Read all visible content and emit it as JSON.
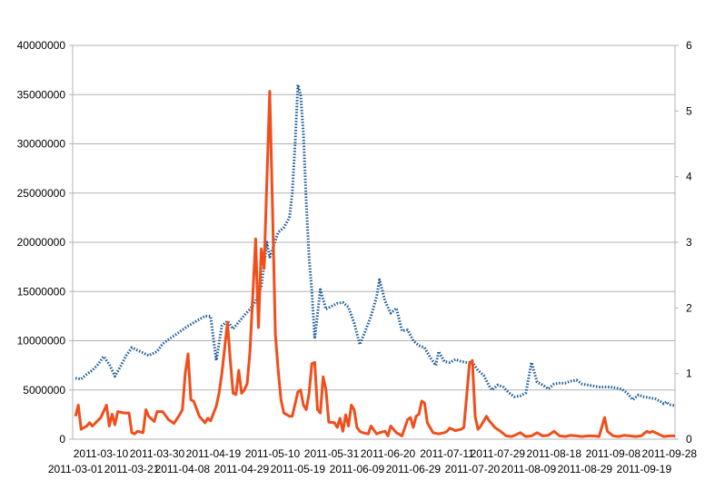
{
  "chart_data": {
    "type": "line",
    "title": "",
    "xlabel": "",
    "ylabel": "",
    "y_left": {
      "ylim": [
        0,
        40000000
      ],
      "ticks": [
        "0",
        "5000000",
        "10000000",
        "15000000",
        "20000000",
        "25000000",
        "30000000",
        "35000000",
        "40000000"
      ]
    },
    "y_right": {
      "ylim": [
        0,
        6
      ],
      "ticks": [
        "0",
        "1",
        "2",
        "3",
        "4",
        "5",
        "6"
      ]
    },
    "x_range": [
      "2011-02-28",
      "2011-09-30"
    ],
    "x_labels_row1": [
      "2011-03-10",
      "2011-03-30",
      "2011-04-19",
      "2011-05-10",
      "2011-05-31",
      "2011-06-20",
      "2011-07-11",
      "2011-07-29",
      "2011-08-18",
      "2011-09-08",
      "2011-09-28"
    ],
    "x_labels_row2": [
      "2011-03-01",
      "2011-03-21",
      "2011-04-08",
      "2011-04-29",
      "2011-05-19",
      "2011-06-09",
      "2011-06-29",
      "2011-07-20",
      "2011-08-09",
      "2011-08-29",
      "2011-09-19"
    ],
    "grid": true,
    "legend": "none",
    "series": [
      {
        "axis": "left",
        "color": "#1f5c99",
        "style": "dotted",
        "points": [
          [
            "2011-03-01",
            6200000
          ],
          [
            "2011-03-03",
            6100000
          ],
          [
            "2011-03-05",
            6600000
          ],
          [
            "2011-03-07",
            7000000
          ],
          [
            "2011-03-09",
            7600000
          ],
          [
            "2011-03-11",
            8400000
          ],
          [
            "2011-03-13",
            7600000
          ],
          [
            "2011-03-15",
            6400000
          ],
          [
            "2011-03-17",
            7400000
          ],
          [
            "2011-03-19",
            8500000
          ],
          [
            "2011-03-21",
            9300000
          ],
          [
            "2011-03-24",
            8900000
          ],
          [
            "2011-03-27",
            8500000
          ],
          [
            "2011-03-30",
            8900000
          ],
          [
            "2011-04-01",
            9700000
          ],
          [
            "2011-04-04",
            10300000
          ],
          [
            "2011-04-07",
            10900000
          ],
          [
            "2011-04-10",
            11500000
          ],
          [
            "2011-04-13",
            12000000
          ],
          [
            "2011-04-16",
            12500000
          ],
          [
            "2011-04-18",
            12500000
          ],
          [
            "2011-04-20",
            8000000
          ],
          [
            "2011-04-22",
            11500000
          ],
          [
            "2011-04-24",
            12000000
          ],
          [
            "2011-04-26",
            11200000
          ],
          [
            "2011-04-28",
            11900000
          ],
          [
            "2011-04-30",
            12600000
          ],
          [
            "2011-05-02",
            13200000
          ],
          [
            "2011-05-04",
            14000000
          ],
          [
            "2011-05-06",
            15500000
          ],
          [
            "2011-05-08",
            20000000
          ],
          [
            "2011-05-09",
            18500000
          ],
          [
            "2011-05-10",
            19300000
          ],
          [
            "2011-05-12",
            21000000
          ],
          [
            "2011-05-14",
            21500000
          ],
          [
            "2011-05-16",
            22500000
          ],
          [
            "2011-05-17",
            25000000
          ],
          [
            "2011-05-18",
            30000000
          ],
          [
            "2011-05-19",
            36000000
          ],
          [
            "2011-05-20",
            35000000
          ],
          [
            "2011-05-21",
            31000000
          ],
          [
            "2011-05-22",
            24000000
          ],
          [
            "2011-05-23",
            18500000
          ],
          [
            "2011-05-24",
            15000000
          ],
          [
            "2011-05-25",
            10200000
          ],
          [
            "2011-05-27",
            15200000
          ],
          [
            "2011-05-29",
            13200000
          ],
          [
            "2011-05-31",
            13500000
          ],
          [
            "2011-06-02",
            13800000
          ],
          [
            "2011-06-04",
            13900000
          ],
          [
            "2011-06-06",
            13400000
          ],
          [
            "2011-06-08",
            11800000
          ],
          [
            "2011-06-10",
            9600000
          ],
          [
            "2011-06-12",
            11000000
          ],
          [
            "2011-06-14",
            12500000
          ],
          [
            "2011-06-16",
            14500000
          ],
          [
            "2011-06-17",
            16200000
          ],
          [
            "2011-06-19",
            14000000
          ],
          [
            "2011-06-21",
            12800000
          ],
          [
            "2011-06-23",
            13300000
          ],
          [
            "2011-06-25",
            11000000
          ],
          [
            "2011-06-27",
            11100000
          ],
          [
            "2011-06-29",
            10000000
          ],
          [
            "2011-07-01",
            9500000
          ],
          [
            "2011-07-03",
            9300000
          ],
          [
            "2011-07-05",
            8300000
          ],
          [
            "2011-07-07",
            7500000
          ],
          [
            "2011-07-08",
            8900000
          ],
          [
            "2011-07-10",
            7900000
          ],
          [
            "2011-07-12",
            7800000
          ],
          [
            "2011-07-14",
            8100000
          ],
          [
            "2011-07-16",
            7900000
          ],
          [
            "2011-07-18",
            7800000
          ],
          [
            "2011-07-20",
            7800000
          ],
          [
            "2011-07-22",
            7000000
          ],
          [
            "2011-07-24",
            6500000
          ],
          [
            "2011-07-26",
            5400000
          ],
          [
            "2011-07-27",
            5000000
          ],
          [
            "2011-07-29",
            5500000
          ],
          [
            "2011-07-31",
            5300000
          ],
          [
            "2011-08-02",
            4700000
          ],
          [
            "2011-08-04",
            4300000
          ],
          [
            "2011-08-06",
            4400000
          ],
          [
            "2011-08-08",
            4700000
          ],
          [
            "2011-08-10",
            7800000
          ],
          [
            "2011-08-12",
            5800000
          ],
          [
            "2011-08-14",
            5500000
          ],
          [
            "2011-08-16",
            5100000
          ],
          [
            "2011-08-18",
            5600000
          ],
          [
            "2011-08-20",
            5700000
          ],
          [
            "2011-08-22",
            5700000
          ],
          [
            "2011-08-24",
            5900000
          ],
          [
            "2011-08-26",
            6000000
          ],
          [
            "2011-08-28",
            5600000
          ],
          [
            "2011-08-30",
            5500000
          ],
          [
            "2011-09-01",
            5400000
          ],
          [
            "2011-09-03",
            5300000
          ],
          [
            "2011-09-05",
            5300000
          ],
          [
            "2011-09-07",
            5300000
          ],
          [
            "2011-09-09",
            5200000
          ],
          [
            "2011-09-11",
            5100000
          ],
          [
            "2011-09-13",
            4700000
          ],
          [
            "2011-09-15",
            4000000
          ],
          [
            "2011-09-17",
            4500000
          ],
          [
            "2011-09-19",
            4300000
          ],
          [
            "2011-09-21",
            4200000
          ],
          [
            "2011-09-23",
            4100000
          ],
          [
            "2011-09-25",
            3800000
          ],
          [
            "2011-09-26",
            3600000
          ],
          [
            "2011-09-27",
            3800000
          ],
          [
            "2011-09-28",
            3500000
          ],
          [
            "2011-09-30",
            3400000
          ]
        ]
      },
      {
        "axis": "right",
        "color": "#f04e1b",
        "style": "solid",
        "points": [
          [
            "2011-03-01",
            0.35
          ],
          [
            "2011-03-02",
            0.52
          ],
          [
            "2011-03-03",
            0.15
          ],
          [
            "2011-03-05",
            0.2
          ],
          [
            "2011-03-06",
            0.25
          ],
          [
            "2011-03-07",
            0.2
          ],
          [
            "2011-03-10",
            0.33
          ],
          [
            "2011-03-12",
            0.52
          ],
          [
            "2011-03-13",
            0.2
          ],
          [
            "2011-03-14",
            0.38
          ],
          [
            "2011-03-15",
            0.22
          ],
          [
            "2011-03-16",
            0.42
          ],
          [
            "2011-03-18",
            0.4
          ],
          [
            "2011-03-20",
            0.4
          ],
          [
            "2011-03-21",
            0.1
          ],
          [
            "2011-03-22",
            0.08
          ],
          [
            "2011-03-23",
            0.12
          ],
          [
            "2011-03-25",
            0.1
          ],
          [
            "2011-03-26",
            0.45
          ],
          [
            "2011-03-27",
            0.35
          ],
          [
            "2011-03-29",
            0.27
          ],
          [
            "2011-03-30",
            0.42
          ],
          [
            "2011-04-01",
            0.42
          ],
          [
            "2011-04-03",
            0.3
          ],
          [
            "2011-04-05",
            0.24
          ],
          [
            "2011-04-07",
            0.37
          ],
          [
            "2011-04-08",
            0.45
          ],
          [
            "2011-04-09",
            1.0
          ],
          [
            "2011-04-10",
            1.3
          ],
          [
            "2011-04-11",
            0.6
          ],
          [
            "2011-04-12",
            0.58
          ],
          [
            "2011-04-14",
            0.35
          ],
          [
            "2011-04-16",
            0.25
          ],
          [
            "2011-04-17",
            0.32
          ],
          [
            "2011-04-18",
            0.28
          ],
          [
            "2011-04-20",
            0.5
          ],
          [
            "2011-04-21",
            0.7
          ],
          [
            "2011-04-22",
            1.0
          ],
          [
            "2011-04-24",
            1.78
          ],
          [
            "2011-04-25",
            1.2
          ],
          [
            "2011-04-26",
            0.7
          ],
          [
            "2011-04-27",
            0.68
          ],
          [
            "2011-04-28",
            1.05
          ],
          [
            "2011-04-29",
            0.7
          ],
          [
            "2011-04-30",
            0.75
          ],
          [
            "2011-05-01",
            0.85
          ],
          [
            "2011-05-02",
            1.35
          ],
          [
            "2011-05-04",
            3.05
          ],
          [
            "2011-05-05",
            1.7
          ],
          [
            "2011-05-06",
            2.9
          ],
          [
            "2011-05-07",
            2.6
          ],
          [
            "2011-05-09",
            5.3
          ],
          [
            "2011-05-10",
            3.5
          ],
          [
            "2011-05-11",
            1.6
          ],
          [
            "2011-05-12",
            1.05
          ],
          [
            "2011-05-13",
            0.6
          ],
          [
            "2011-05-14",
            0.4
          ],
          [
            "2011-05-16",
            0.35
          ],
          [
            "2011-05-17",
            0.35
          ],
          [
            "2011-05-19",
            0.72
          ],
          [
            "2011-05-20",
            0.75
          ],
          [
            "2011-05-21",
            0.52
          ],
          [
            "2011-05-22",
            0.45
          ],
          [
            "2011-05-23",
            0.7
          ],
          [
            "2011-05-24",
            1.15
          ],
          [
            "2011-05-25",
            1.17
          ],
          [
            "2011-05-26",
            0.45
          ],
          [
            "2011-05-27",
            0.4
          ],
          [
            "2011-05-28",
            0.95
          ],
          [
            "2011-05-29",
            0.75
          ],
          [
            "2011-05-30",
            0.26
          ],
          [
            "2011-06-01",
            0.25
          ],
          [
            "2011-06-02",
            0.18
          ],
          [
            "2011-06-03",
            0.32
          ],
          [
            "2011-06-04",
            0.12
          ],
          [
            "2011-06-05",
            0.37
          ],
          [
            "2011-06-06",
            0.2
          ],
          [
            "2011-06-07",
            0.52
          ],
          [
            "2011-06-08",
            0.45
          ],
          [
            "2011-06-09",
            0.18
          ],
          [
            "2011-06-10",
            0.12
          ],
          [
            "2011-06-11",
            0.1
          ],
          [
            "2011-06-13",
            0.08
          ],
          [
            "2011-06-14",
            0.2
          ],
          [
            "2011-06-16",
            0.08
          ],
          [
            "2011-06-17",
            0.1
          ],
          [
            "2011-06-19",
            0.12
          ],
          [
            "2011-06-20",
            0.05
          ],
          [
            "2011-06-21",
            0.2
          ],
          [
            "2011-06-23",
            0.1
          ],
          [
            "2011-06-25",
            0.05
          ],
          [
            "2011-06-27",
            0.3
          ],
          [
            "2011-06-28",
            0.33
          ],
          [
            "2011-06-29",
            0.18
          ],
          [
            "2011-06-30",
            0.35
          ],
          [
            "2011-07-01",
            0.38
          ],
          [
            "2011-07-02",
            0.58
          ],
          [
            "2011-07-03",
            0.55
          ],
          [
            "2011-07-04",
            0.25
          ],
          [
            "2011-07-06",
            0.1
          ],
          [
            "2011-07-08",
            0.08
          ],
          [
            "2011-07-10",
            0.1
          ],
          [
            "2011-07-11",
            0.12
          ],
          [
            "2011-07-12",
            0.17
          ],
          [
            "2011-07-14",
            0.13
          ],
          [
            "2011-07-16",
            0.15
          ],
          [
            "2011-07-17",
            0.18
          ],
          [
            "2011-07-19",
            1.15
          ],
          [
            "2011-07-20",
            1.2
          ],
          [
            "2011-07-21",
            0.35
          ],
          [
            "2011-07-22",
            0.15
          ],
          [
            "2011-07-23",
            0.2
          ],
          [
            "2011-07-25",
            0.35
          ],
          [
            "2011-07-26",
            0.28
          ],
          [
            "2011-07-28",
            0.18
          ],
          [
            "2011-07-30",
            0.12
          ],
          [
            "2011-08-01",
            0.05
          ],
          [
            "2011-08-03",
            0.04
          ],
          [
            "2011-08-04",
            0.06
          ],
          [
            "2011-08-06",
            0.1
          ],
          [
            "2011-08-08",
            0.04
          ],
          [
            "2011-08-10",
            0.05
          ],
          [
            "2011-08-12",
            0.1
          ],
          [
            "2011-08-14",
            0.05
          ],
          [
            "2011-08-16",
            0.06
          ],
          [
            "2011-08-18",
            0.12
          ],
          [
            "2011-08-20",
            0.05
          ],
          [
            "2011-08-22",
            0.04
          ],
          [
            "2011-08-24",
            0.06
          ],
          [
            "2011-08-26",
            0.05
          ],
          [
            "2011-08-28",
            0.04
          ],
          [
            "2011-08-30",
            0.05
          ],
          [
            "2011-09-01",
            0.05
          ],
          [
            "2011-09-03",
            0.04
          ],
          [
            "2011-09-05",
            0.33
          ],
          [
            "2011-09-06",
            0.12
          ],
          [
            "2011-09-08",
            0.05
          ],
          [
            "2011-09-10",
            0.04
          ],
          [
            "2011-09-12",
            0.06
          ],
          [
            "2011-09-14",
            0.05
          ],
          [
            "2011-09-16",
            0.04
          ],
          [
            "2011-09-18",
            0.05
          ],
          [
            "2011-09-20",
            0.12
          ],
          [
            "2011-09-21",
            0.1
          ],
          [
            "2011-09-22",
            0.12
          ],
          [
            "2011-09-24",
            0.08
          ],
          [
            "2011-09-26",
            0.04
          ],
          [
            "2011-09-28",
            0.05
          ],
          [
            "2011-09-30",
            0.05
          ]
        ]
      }
    ]
  }
}
